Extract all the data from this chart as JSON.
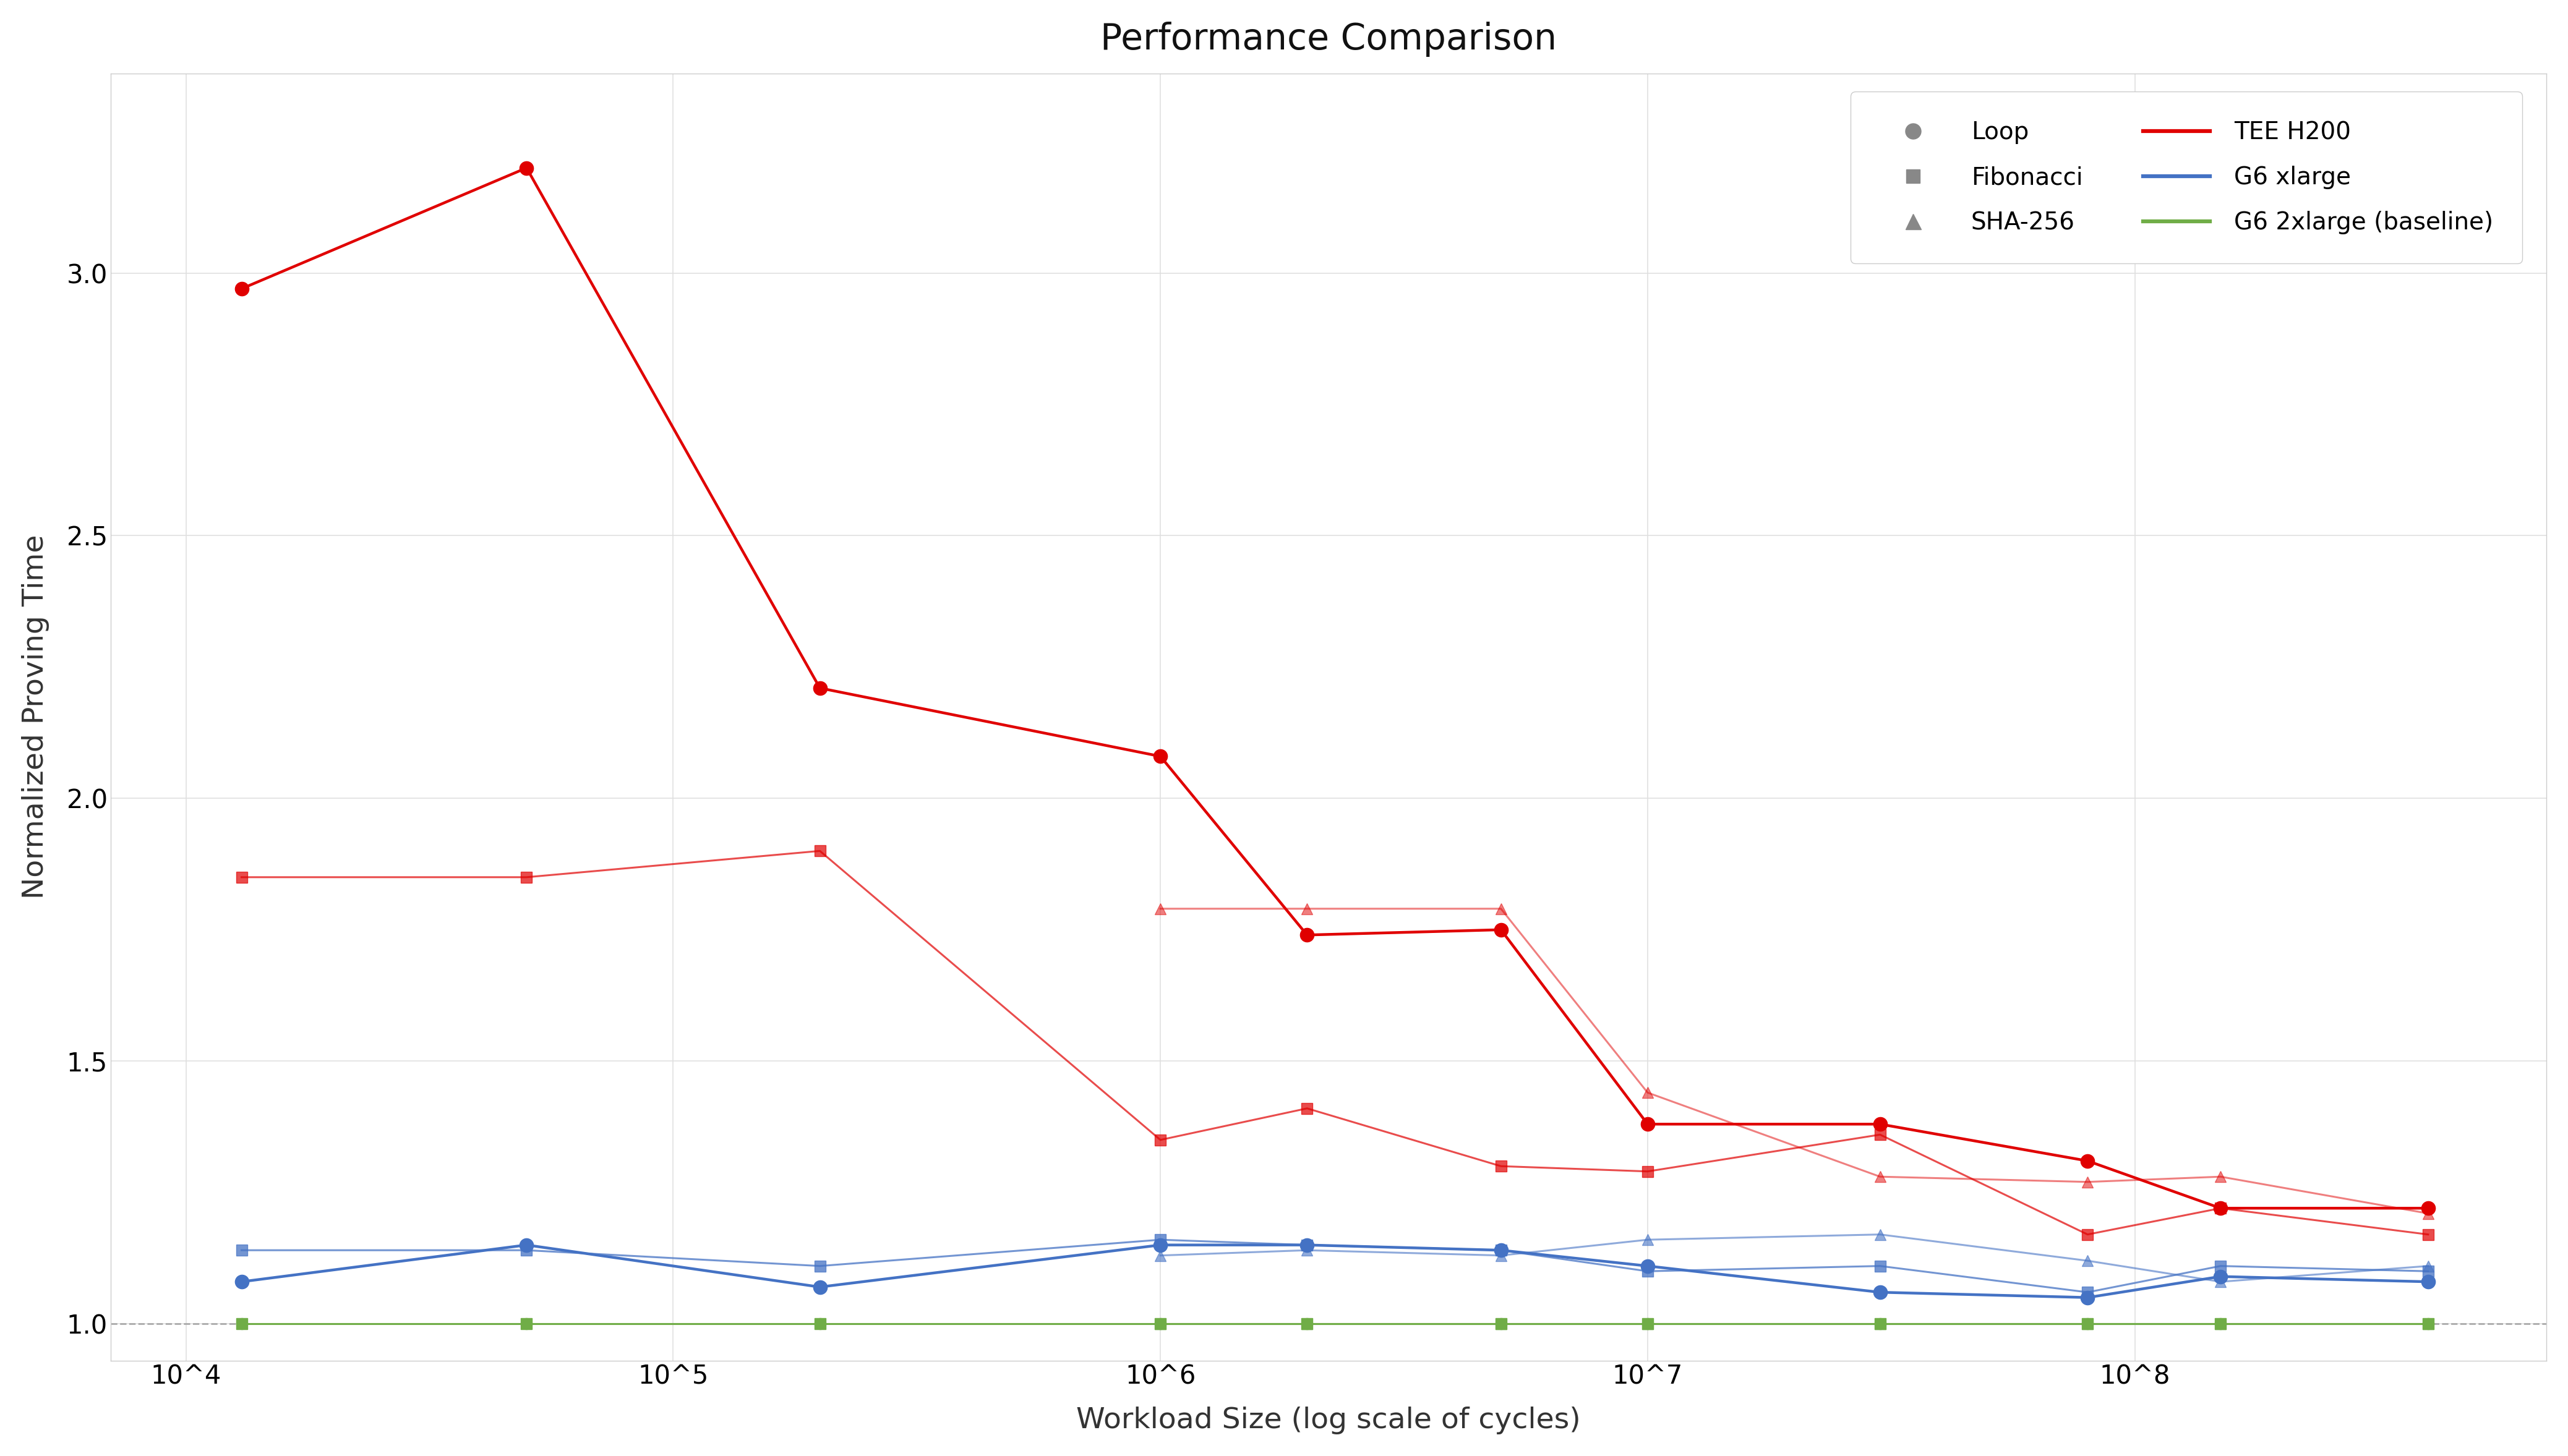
{
  "title": "Performance Comparison",
  "xlabel": "Workload Size (log scale of cycles)",
  "ylabel": "Normalized Proving Time",
  "tee_color": "#e00000",
  "g6xl_color": "#4472c4",
  "base_color": "#70ad47",
  "gray": "#888888",
  "tee_loop_x": [
    13000,
    50000,
    200000,
    1000000,
    2000000,
    5000000,
    10000000,
    30000000,
    80000000,
    150000000,
    400000000
  ],
  "tee_loop_y": [
    2.97,
    3.2,
    2.21,
    2.08,
    1.74,
    1.75,
    1.38,
    1.38,
    1.31,
    1.22,
    1.22
  ],
  "tee_fib_x": [
    13000,
    50000,
    200000,
    1000000,
    2000000,
    5000000,
    10000000,
    30000000,
    80000000,
    150000000,
    400000000
  ],
  "tee_fib_y": [
    1.85,
    1.85,
    1.9,
    1.35,
    1.41,
    1.3,
    1.29,
    1.36,
    1.17,
    1.22,
    1.17
  ],
  "tee_sha_x": [
    1000000,
    2000000,
    5000000,
    10000000,
    30000000,
    80000000,
    150000000,
    400000000
  ],
  "tee_sha_y": [
    1.79,
    1.79,
    1.79,
    1.44,
    1.28,
    1.27,
    1.28,
    1.21
  ],
  "g6xl_loop_x": [
    13000,
    50000,
    200000,
    1000000,
    2000000,
    5000000,
    10000000,
    30000000,
    80000000,
    150000000,
    400000000
  ],
  "g6xl_loop_y": [
    1.08,
    1.15,
    1.07,
    1.15,
    1.15,
    1.14,
    1.11,
    1.06,
    1.05,
    1.09,
    1.08
  ],
  "g6xl_fib_x": [
    13000,
    50000,
    200000,
    1000000,
    2000000,
    5000000,
    10000000,
    30000000,
    80000000,
    150000000,
    400000000
  ],
  "g6xl_fib_y": [
    1.14,
    1.14,
    1.11,
    1.16,
    1.15,
    1.14,
    1.1,
    1.11,
    1.06,
    1.11,
    1.1
  ],
  "g6xl_sha_x": [
    1000000,
    2000000,
    5000000,
    10000000,
    30000000,
    80000000,
    150000000,
    400000000
  ],
  "g6xl_sha_y": [
    1.13,
    1.14,
    1.13,
    1.16,
    1.17,
    1.12,
    1.08,
    1.11
  ],
  "base_x": [
    13000,
    50000,
    200000,
    1000000,
    2000000,
    5000000,
    10000000,
    30000000,
    80000000,
    150000000,
    400000000
  ],
  "base_y": [
    1.0,
    1.0,
    1.0,
    1.0,
    1.0,
    1.0,
    1.0,
    1.0,
    1.0,
    1.0,
    1.0
  ],
  "base_fib_x": [
    13000,
    50000,
    200000,
    1000000,
    2000000,
    5000000,
    10000000,
    30000000,
    80000000,
    150000000,
    400000000
  ],
  "base_fib_y": [
    1.0,
    1.0,
    1.0,
    1.0,
    1.0,
    1.0,
    1.0,
    1.0,
    1.0,
    1.0,
    1.0
  ],
  "base_sha_x": [
    1000000,
    2000000,
    5000000,
    10000000,
    30000000,
    80000000,
    150000000,
    400000000
  ],
  "base_sha_y": [
    1.0,
    1.0,
    1.0,
    1.0,
    1.0,
    1.0,
    1.0,
    1.0
  ],
  "xticks": [
    10000,
    100000,
    1000000,
    10000000,
    100000000
  ],
  "xtick_labels": [
    "10^4",
    "10^5",
    "10^6",
    "10^7",
    "10^8"
  ],
  "yticks": [
    1.0,
    1.5,
    2.0,
    2.5,
    3.0
  ],
  "xlim": [
    7000,
    700000000
  ],
  "ylim": [
    0.93,
    3.38
  ]
}
